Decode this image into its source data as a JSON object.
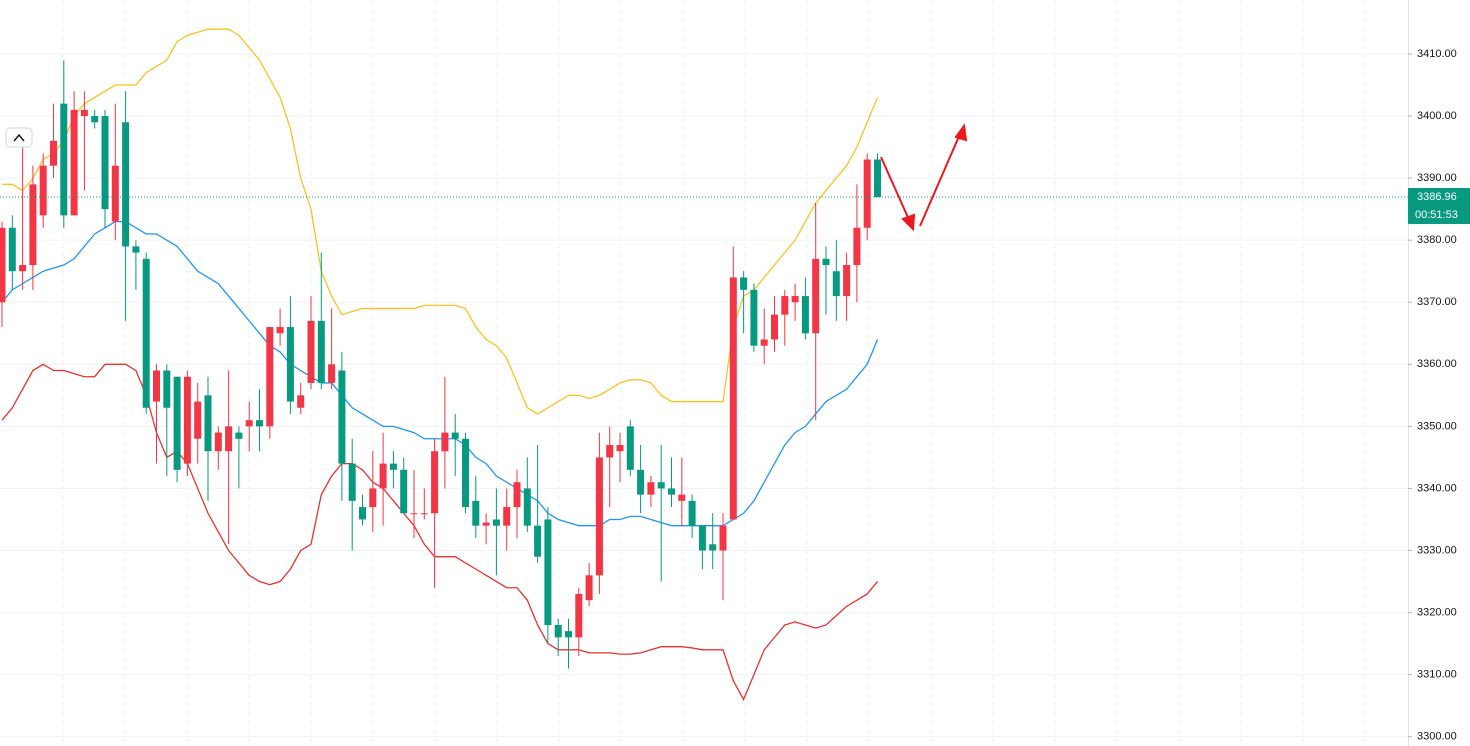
{
  "chart_data": {
    "type": "candlestick",
    "open": [
      3370,
      3382,
      3375,
      3376,
      3384,
      3392,
      3402,
      3384,
      3400,
      3400,
      3400,
      3383,
      3399,
      3379,
      3377,
      3354,
      3359,
      3358,
      3344,
      3348,
      3355,
      3346,
      3346,
      3349,
      3350,
      3351,
      3350,
      3365,
      3366,
      3353,
      3357,
      3367,
      3357,
      3359,
      3344,
      3337,
      3337,
      3340,
      3344,
      3343,
      3336,
      3336,
      3336,
      3346,
      3349,
      3348,
      3338,
      3334,
      3335,
      3334,
      3337,
      3340,
      3334,
      3335,
      3318,
      3317,
      3316,
      3322,
      3326,
      3345,
      3346,
      3350,
      3343,
      3339,
      3341,
      3340,
      3338,
      3338,
      3334,
      3331,
      3330,
      3335,
      3374,
      3372,
      3363,
      3364,
      3368,
      3370,
      3371,
      3365,
      3377,
      3375,
      3371,
      3376,
      3382,
      3393
    ],
    "high": [
      3383,
      3384,
      3395,
      3392,
      3394,
      3402,
      3409,
      3404,
      3404,
      3401,
      3401,
      3402,
      3404,
      3380,
      3378,
      3360,
      3360,
      3358,
      3359,
      3357,
      3358,
      3350,
      3359,
      3350,
      3354,
      3356,
      3366,
      3369,
      3371,
      3357,
      3371,
      3378,
      3369,
      3362,
      3348,
      3339,
      3346,
      3349,
      3346,
      3345,
      3343,
      3340,
      3348,
      3358,
      3352,
      3349,
      3342,
      3336,
      3340,
      3340,
      3343,
      3345,
      3347,
      3337,
      3319,
      3319,
      3324,
      3328,
      3349,
      3350,
      3349,
      3351,
      3347,
      3342,
      3347,
      3345,
      3345,
      3339,
      3334,
      3336,
      3336,
      3379,
      3375,
      3373,
      3369,
      3371,
      3372,
      3373,
      3374,
      3386,
      3379,
      3380,
      3378,
      3389,
      3394,
      3394
    ],
    "low": [
      3366,
      3372,
      3372,
      3372,
      3382,
      3390,
      3382,
      3384,
      3388,
      3398,
      3382,
      3380,
      3367,
      3372,
      3352,
      3344,
      3342,
      3341,
      3342,
      3344,
      3338,
      3343,
      3331,
      3340,
      3346,
      3346,
      3348,
      3363,
      3352,
      3352,
      3356,
      3356,
      3356,
      3338,
      3330,
      3334,
      3333,
      3334,
      3340,
      3336,
      3332,
      3335,
      3324,
      3340,
      3342,
      3336,
      3332,
      3331,
      3326,
      3330,
      3332,
      3333,
      3328,
      3315,
      3313,
      3311,
      3313,
      3321,
      3323,
      3337,
      3341,
      3342,
      3336,
      3337,
      3325,
      3337,
      3334,
      3332,
      3327,
      3327,
      3322,
      3335,
      3365,
      3362,
      3360,
      3362,
      3363,
      3367,
      3364,
      3351,
      3368,
      3367,
      3367,
      3370,
      3380,
      3387
    ],
    "close": [
      3382,
      3375,
      3376,
      3389,
      3392,
      3396,
      3384,
      3401,
      3401,
      3399,
      3385,
      3392,
      3379,
      3378,
      3353,
      3359,
      3353,
      3343,
      3358,
      3354,
      3346,
      3349,
      3350,
      3348,
      3351,
      3350,
      3366,
      3366,
      3354,
      3355,
      3367,
      3357,
      3360,
      3344,
      3338,
      3335,
      3340,
      3344,
      3343,
      3336,
      3336,
      3336,
      3346,
      3349,
      3348,
      3337,
      3334,
      3334.5,
      3334,
      3337,
      3341,
      3334,
      3329,
      3318,
      3316,
      3316,
      3323,
      3326,
      3345,
      3347,
      3347,
      3343,
      3339,
      3341,
      3340,
      3339,
      3339,
      3334,
      3330,
      3330,
      3334,
      3374,
      3372,
      3363,
      3364,
      3368,
      3371,
      3371,
      3365,
      3377,
      3376,
      3371,
      3376,
      3382,
      3393,
      3386.96
    ],
    "up_color": "#f23645",
    "down_color": "#089981",
    "bands": {
      "upper": {
        "color": "#f7c325",
        "values": [
          3389,
          3389,
          3388,
          3390,
          3393,
          3394,
          3396,
          3400,
          3402,
          3403,
          3404,
          3405,
          3405,
          3405,
          3407,
          3408,
          3409,
          3412,
          3413,
          3413.5,
          3414,
          3414,
          3414,
          3413,
          3411,
          3409,
          3406,
          3403,
          3398,
          3390,
          3385,
          3375,
          3371,
          3368,
          3368.5,
          3369,
          3369,
          3369,
          3369,
          3369,
          3369,
          3369.5,
          3369.5,
          3369.5,
          3369.5,
          3369,
          3366,
          3364,
          3363,
          3361,
          3357,
          3353,
          3352,
          3353,
          3354,
          3355,
          3355,
          3354.5,
          3355,
          3356,
          3357,
          3357.5,
          3357.5,
          3357,
          3355,
          3354,
          3354,
          3354,
          3354,
          3354,
          3354,
          3366,
          3371,
          3372,
          3374,
          3376,
          3378,
          3380,
          3383,
          3386,
          3388,
          3390,
          3392,
          3395,
          3399,
          3403
        ]
      },
      "middle": {
        "color": "#2196f3",
        "values": [
          3370,
          3372,
          3373,
          3374,
          3375,
          3375.5,
          3376,
          3377,
          3379,
          3381,
          3382,
          3383,
          3383,
          3382,
          3381,
          3381,
          3380,
          3379,
          3377,
          3375,
          3374,
          3373,
          3371,
          3369,
          3367,
          3365,
          3363,
          3362,
          3360,
          3359,
          3358,
          3357,
          3357,
          3355,
          3353,
          3352,
          3351,
          3350,
          3350,
          3349.5,
          3349,
          3348,
          3348,
          3348,
          3348,
          3347,
          3345,
          3344,
          3342,
          3341,
          3340,
          3339,
          3338,
          3336,
          3335,
          3334.5,
          3334,
          3334,
          3334,
          3335,
          3335,
          3335.5,
          3335.5,
          3335,
          3334.5,
          3334,
          3334,
          3334,
          3334,
          3334,
          3334,
          3335,
          3336,
          3338,
          3341,
          3344,
          3347,
          3349,
          3350,
          3352,
          3354,
          3355,
          3356,
          3358,
          3360,
          3364
        ]
      },
      "lower": {
        "color": "#e8332e",
        "values": [
          3351,
          3353,
          3356,
          3359,
          3360,
          3359,
          3359,
          3358.5,
          3358,
          3358,
          3360,
          3360,
          3360,
          3359,
          3355,
          3349,
          3345,
          3346,
          3344,
          3340,
          3336,
          3333,
          3330,
          3328,
          3326,
          3325,
          3324.5,
          3325,
          3327,
          3330,
          3331,
          3339,
          3342,
          3344,
          3344,
          3343,
          3341,
          3340,
          3338,
          3336,
          3334,
          3331,
          3329,
          3329,
          3329,
          3328,
          3327,
          3326,
          3325,
          3324,
          3324,
          3322,
          3318,
          3315,
          3314,
          3314,
          3314,
          3313.5,
          3313.5,
          3313.5,
          3313.3,
          3313.3,
          3313.5,
          3314,
          3314.5,
          3314.5,
          3314.5,
          3314.3,
          3314,
          3314,
          3314,
          3309,
          3306,
          3310,
          3314,
          3316,
          3318,
          3318.5,
          3318,
          3317.5,
          3318,
          3319.5,
          3321,
          3322,
          3323,
          3325
        ]
      }
    },
    "last_price": 3386.96,
    "countdown": "00:51:53",
    "ylim": [
      3298.5,
      3418.7
    ],
    "yticks": [
      {
        "value": 3300,
        "label": "3300.00"
      },
      {
        "value": 3310,
        "label": "3310.00"
      },
      {
        "value": 3320,
        "label": "3320.00"
      },
      {
        "value": 3330,
        "label": "3330.00"
      },
      {
        "value": 3340,
        "label": "3340.00"
      },
      {
        "value": 3350,
        "label": "3350.00"
      },
      {
        "value": 3360,
        "label": "3360.00"
      },
      {
        "value": 3370,
        "label": "3370.00"
      },
      {
        "value": 3380,
        "label": "3380.00"
      },
      {
        "value": 3390,
        "label": "3390.00"
      },
      {
        "value": 3400,
        "label": "3400.00"
      },
      {
        "value": 3410,
        "label": "3410.00"
      }
    ],
    "grid": true
  }
}
